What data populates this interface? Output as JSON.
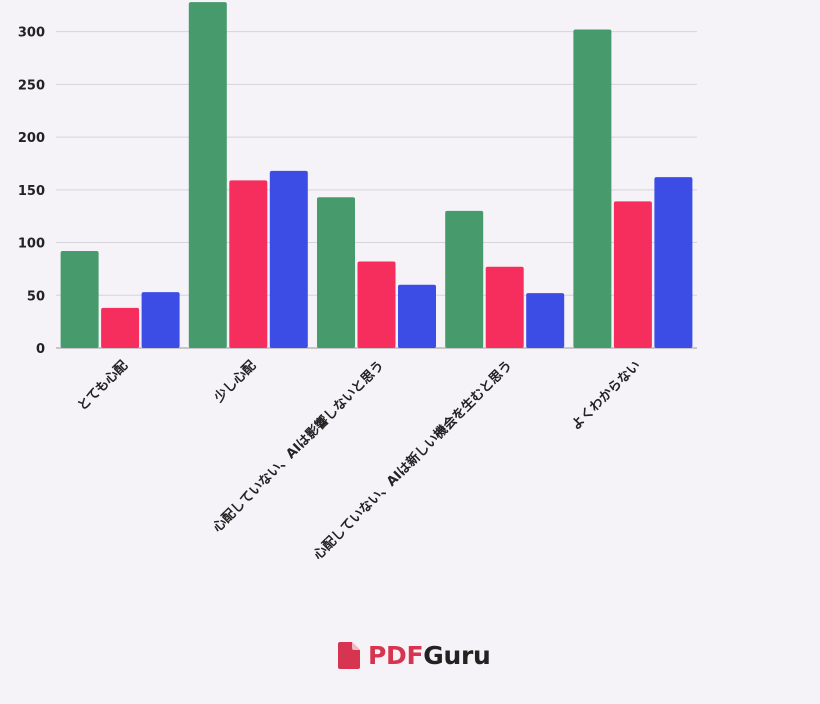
{
  "chart_data": {
    "type": "bar",
    "categories": [
      "とても心配",
      "少し心配",
      "心配していない、AIは影響しないと思う",
      "心配していない、AIは新しい機会を生むと思う",
      "よくわからない"
    ],
    "series": [
      {
        "values": [
          92,
          328,
          143,
          130,
          302
        ],
        "color": "#469a6b"
      },
      {
        "values": [
          38,
          159,
          82,
          77,
          139
        ],
        "color": "#f62e5d"
      },
      {
        "values": [
          53,
          168,
          60,
          52,
          162
        ],
        "color": "#3c4de6"
      }
    ],
    "ylim": [
      0,
      330
    ],
    "yticks": [
      0,
      50,
      100,
      150,
      200,
      250,
      300
    ],
    "grid": true
  },
  "branding": {
    "pdf": "PDF",
    "guru": "Guru",
    "icon": "pdf-file-icon",
    "color": "#d7344f"
  }
}
